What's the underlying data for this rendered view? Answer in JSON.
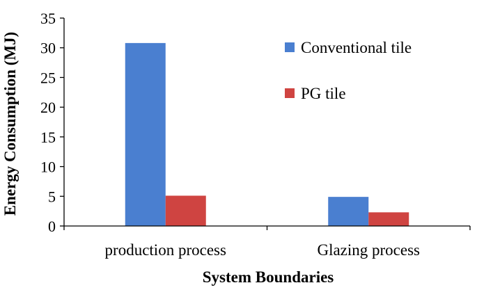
{
  "chart_data": {
    "type": "bar",
    "categories": [
      "production process",
      "Glazing process"
    ],
    "series": [
      {
        "name": "Conventional tile",
        "values": [
          30.8,
          4.9
        ],
        "color": "#4a7fd0"
      },
      {
        "name": "PG tile",
        "values": [
          5.1,
          2.3
        ],
        "color": "#cf4441"
      }
    ],
    "xlabel": "System Boundaries",
    "ylabel": "Energy Consumption (MJ)",
    "ylim": [
      0,
      35
    ],
    "yticks": [
      0,
      5,
      10,
      15,
      20,
      25,
      30,
      35
    ],
    "legend": "right",
    "grid": false
  }
}
